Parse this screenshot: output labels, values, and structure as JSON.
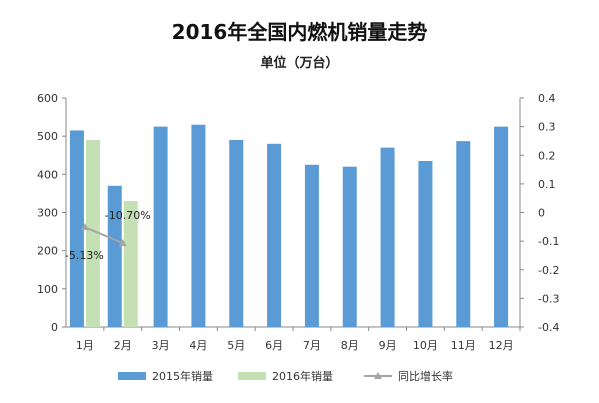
{
  "chart_data": {
    "type": "bar",
    "title": "2016年全国内燃机销量走势",
    "subtitle": "单位（万台）",
    "categories": [
      "1月",
      "2月",
      "3月",
      "4月",
      "5月",
      "6月",
      "7月",
      "8月",
      "9月",
      "10月",
      "11月",
      "12月"
    ],
    "series": [
      {
        "name": "2015年销量",
        "type": "bar",
        "axis": "left",
        "color": "#5B9BD5",
        "values": [
          515,
          370,
          525,
          530,
          490,
          480,
          425,
          420,
          470,
          435,
          487,
          525
        ]
      },
      {
        "name": "2016年销量",
        "type": "bar",
        "axis": "left",
        "color": "#C5E0B4",
        "values": [
          490,
          330,
          null,
          null,
          null,
          null,
          null,
          null,
          null,
          null,
          null,
          null
        ]
      },
      {
        "name": "同比增长率",
        "type": "line",
        "axis": "right",
        "color": "#A5A5A5",
        "values": [
          -0.0513,
          -0.107,
          null,
          null,
          null,
          null,
          null,
          null,
          null,
          null,
          null,
          null
        ],
        "data_labels": [
          "-5.13%",
          "-10.70%"
        ]
      }
    ],
    "ylim_left": [
      0,
      600
    ],
    "yticks_left": [
      "0",
      "100",
      "200",
      "300",
      "400",
      "500",
      "600"
    ],
    "ylim_right": [
      -0.4,
      0.4
    ],
    "yticks_right": [
      "-0.4",
      "-0.3",
      "-0.2",
      "-0.1",
      "0",
      "0.1",
      "0.2",
      "0.3",
      "0.4"
    ],
    "grid": false,
    "legend_position": "bottom"
  }
}
